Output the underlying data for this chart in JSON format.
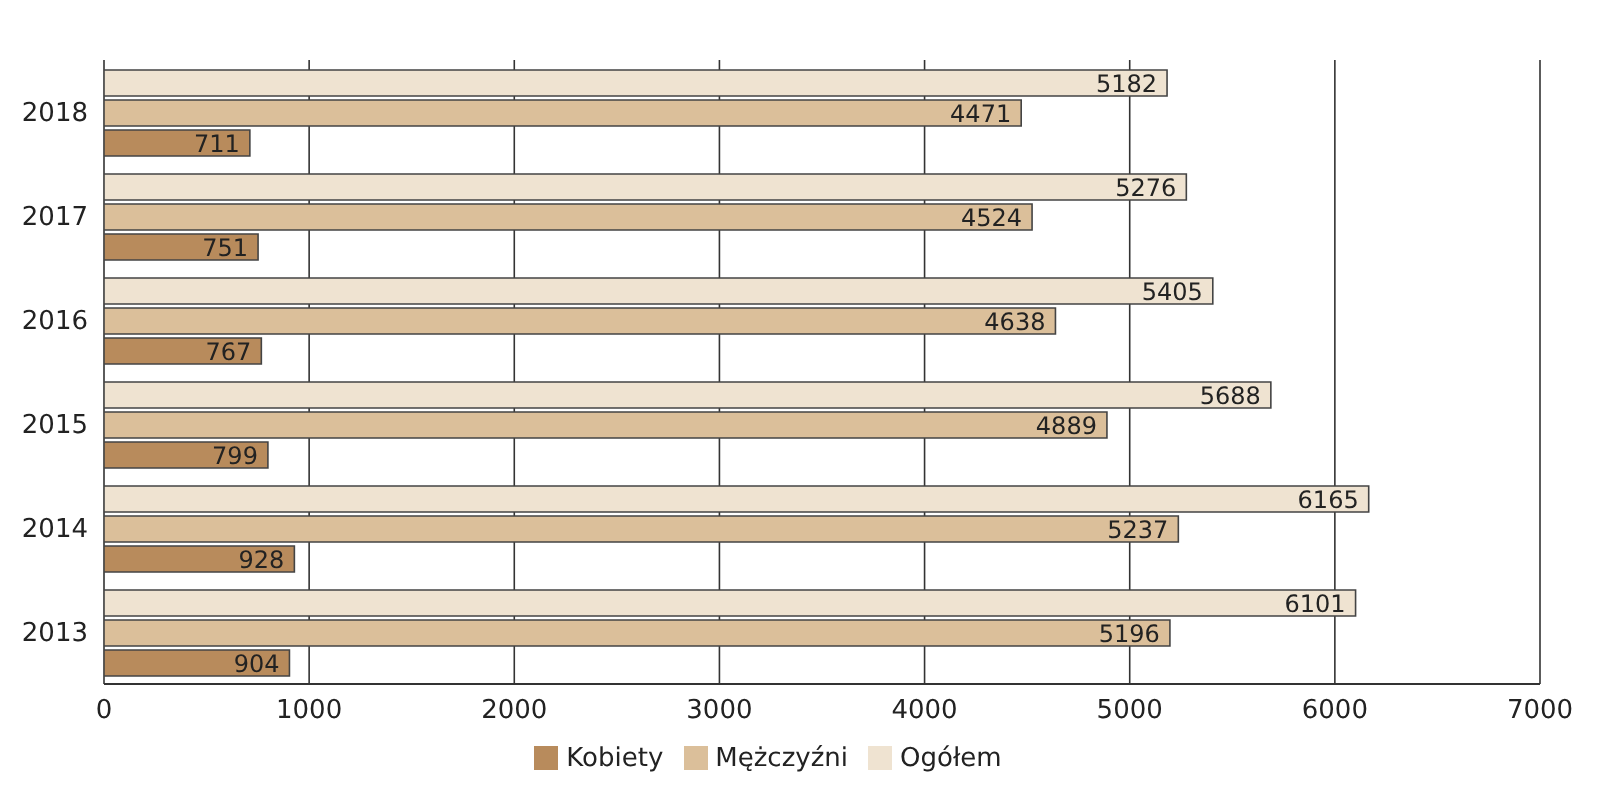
{
  "chart_data": {
    "type": "bar",
    "orientation": "horizontal",
    "categories": [
      "2018",
      "2017",
      "2016",
      "2015",
      "2014",
      "2013"
    ],
    "series": [
      {
        "name": "Ogółem",
        "color": "#efe3d1",
        "values": [
          5182,
          5276,
          5405,
          5688,
          6165,
          6101
        ]
      },
      {
        "name": "Mężczyźni",
        "color": "#dbbf9a",
        "values": [
          4471,
          4524,
          4638,
          4889,
          5237,
          5196
        ]
      },
      {
        "name": "Kobiety",
        "color": "#b88b5c",
        "values": [
          711,
          751,
          767,
          799,
          928,
          904
        ]
      }
    ],
    "xlim": [
      0,
      7000
    ],
    "xticks": [
      0,
      1000,
      2000,
      3000,
      4000,
      5000,
      6000,
      7000
    ],
    "grid": "x",
    "legend": "bottom",
    "data_labels": true
  }
}
